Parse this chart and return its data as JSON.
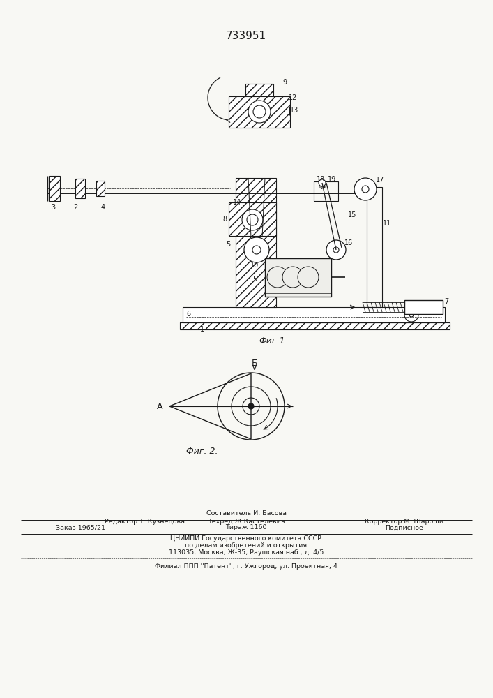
{
  "patent_number": "733951",
  "fig1_caption": "Фиг.1",
  "fig2_caption": "Фиг. 2.",
  "footer_editor": "Редактор Т. Кузнецова",
  "footer_compiler_label": "Составитель И. Басова",
  "footer_techred": "Техред Ж.Кастелевич",
  "footer_corrector": "Корректор М. Шароши",
  "footer_order": "Заказ 1965/21",
  "footer_tirazh": "Тираж 1160",
  "footer_podp": "Подписное",
  "footer_org1": "ЦНИИПИ Государственного комитета СССР",
  "footer_org2": "по делам изобретений и открытия",
  "footer_addr": "113035, Москва, Ж-35, Раушская наб., д. 4/5",
  "footer_filial": "Филиал ППП ''Патент'', г. Ужгород, ул. Проектная, 4",
  "bg_color": "#f8f8f4",
  "line_color": "#1a1a1a",
  "text_color": "#1a1a1a"
}
